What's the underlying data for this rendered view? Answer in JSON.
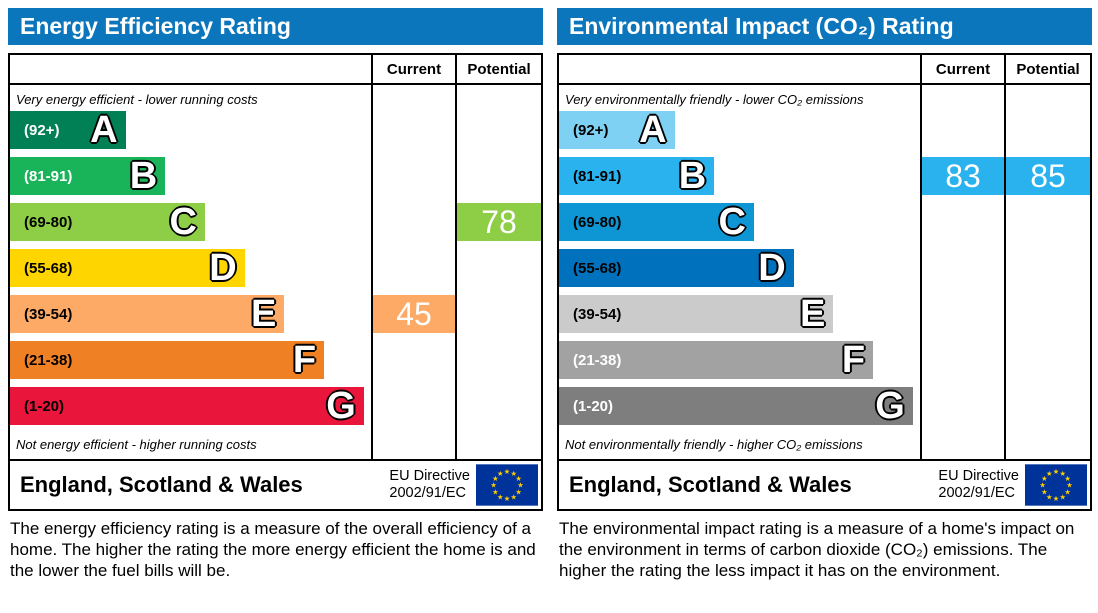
{
  "colors": {
    "header_bg": "#0c76bd",
    "header_text": "#ffffff",
    "border": "#000000",
    "eu_flag_bg": "#003399",
    "eu_star": "#ffcc00"
  },
  "charts": [
    {
      "title": "Energy Efficiency Rating",
      "columns": {
        "current": "Current",
        "potential": "Potential"
      },
      "top_caption": "Very energy efficient - lower running costs",
      "bottom_caption": "Not energy efficient - higher running costs",
      "bands": [
        {
          "range": "(92+)",
          "letter": "A",
          "color": "#008054",
          "label_color": "#ffffff",
          "width_pct": 32
        },
        {
          "range": "(81-91)",
          "letter": "B",
          "color": "#19b459",
          "label_color": "#ffffff",
          "width_pct": 43
        },
        {
          "range": "(69-80)",
          "letter": "C",
          "color": "#8dce46",
          "label_color": "#000000",
          "width_pct": 54
        },
        {
          "range": "(55-68)",
          "letter": "D",
          "color": "#ffd500",
          "label_color": "#000000",
          "width_pct": 65
        },
        {
          "range": "(39-54)",
          "letter": "E",
          "color": "#fcaa65",
          "label_color": "#000000",
          "width_pct": 76
        },
        {
          "range": "(21-38)",
          "letter": "F",
          "color": "#ef8023",
          "label_color": "#000000",
          "width_pct": 87
        },
        {
          "range": "(1-20)",
          "letter": "G",
          "color": "#e9153b",
          "label_color": "#000000",
          "width_pct": 98
        }
      ],
      "current": {
        "value": "45",
        "band_index": 4,
        "color": "#fcaa65"
      },
      "potential": {
        "value": "78",
        "band_index": 2,
        "color": "#8dce46"
      },
      "footer": {
        "region": "England, Scotland & Wales",
        "directive_line1": "EU Directive",
        "directive_line2": "2002/91/EC"
      },
      "description": "The energy efficiency rating is a measure of the overall efficiency of a home. The higher the rating the more energy efficient the home is and the lower the fuel bills will be."
    },
    {
      "title": "Environmental Impact (CO₂) Rating",
      "columns": {
        "current": "Current",
        "potential": "Potential"
      },
      "top_caption": "Very environmentally friendly - lower CO₂ emissions",
      "bottom_caption": "Not environmentally friendly - higher CO₂ emissions",
      "bands": [
        {
          "range": "(92+)",
          "letter": "A",
          "color": "#7fd1f3",
          "label_color": "#000000",
          "width_pct": 32
        },
        {
          "range": "(81-91)",
          "letter": "B",
          "color": "#2ab2ef",
          "label_color": "#000000",
          "width_pct": 43
        },
        {
          "range": "(69-80)",
          "letter": "C",
          "color": "#0d96d3",
          "label_color": "#000000",
          "width_pct": 54
        },
        {
          "range": "(55-68)",
          "letter": "D",
          "color": "#0072bd",
          "label_color": "#000000",
          "width_pct": 65
        },
        {
          "range": "(39-54)",
          "letter": "E",
          "color": "#cbcbcb",
          "label_color": "#000000",
          "width_pct": 76
        },
        {
          "range": "(21-38)",
          "letter": "F",
          "color": "#a2a2a2",
          "label_color": "#ffffff",
          "width_pct": 87
        },
        {
          "range": "(1-20)",
          "letter": "G",
          "color": "#7e7e7e",
          "label_color": "#ffffff",
          "width_pct": 98
        }
      ],
      "current": {
        "value": "83",
        "band_index": 1,
        "color": "#2ab2ef"
      },
      "potential": {
        "value": "85",
        "band_index": 1,
        "color": "#2ab2ef"
      },
      "footer": {
        "region": "England, Scotland & Wales",
        "directive_line1": "EU Directive",
        "directive_line2": "2002/91/EC"
      },
      "description": "The environmental impact rating is a measure of a home's impact on the environment in terms of carbon dioxide (CO₂) emissions. The higher the rating the less impact it has on the environment."
    }
  ],
  "chart_data": [
    {
      "type": "bar",
      "title": "Energy Efficiency Rating",
      "categories": [
        "A (92+)",
        "B (81-91)",
        "C (69-80)",
        "D (55-68)",
        "E (39-54)",
        "F (21-38)",
        "G (1-20)"
      ],
      "bar_relative_widths_pct": [
        32,
        43,
        54,
        65,
        76,
        87,
        98
      ],
      "columns": [
        "Current",
        "Potential"
      ],
      "current": 45,
      "current_band": "E",
      "potential": 78,
      "potential_band": "C",
      "top_caption": "Very energy efficient - lower running costs",
      "bottom_caption": "Not energy efficient - higher running costs",
      "region": "England, Scotland & Wales",
      "directive": "EU Directive 2002/91/EC"
    },
    {
      "type": "bar",
      "title": "Environmental Impact (CO₂) Rating",
      "categories": [
        "A (92+)",
        "B (81-91)",
        "C (69-80)",
        "D (55-68)",
        "E (39-54)",
        "F (21-38)",
        "G (1-20)"
      ],
      "bar_relative_widths_pct": [
        32,
        43,
        54,
        65,
        76,
        87,
        98
      ],
      "columns": [
        "Current",
        "Potential"
      ],
      "current": 83,
      "current_band": "B",
      "potential": 85,
      "potential_band": "B",
      "top_caption": "Very environmentally friendly - lower CO₂ emissions",
      "bottom_caption": "Not environmentally friendly - higher CO₂ emissions",
      "region": "England, Scotland & Wales",
      "directive": "EU Directive 2002/91/EC"
    }
  ]
}
